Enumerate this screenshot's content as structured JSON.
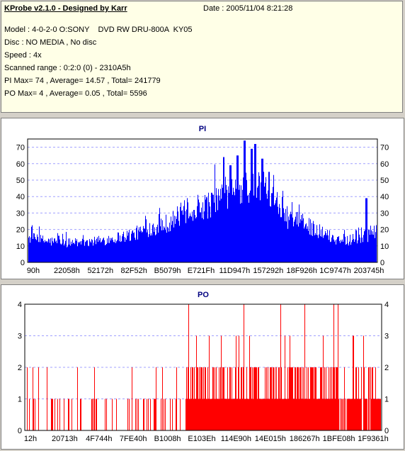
{
  "header": {
    "app_title": "KProbe v2.1.0 - Designed by Karr",
    "date": "Date : 2005/11/04 8:21:28",
    "lines": [
      "Model : 4-0-2-0 O:SONY    DVD RW DRU-800A  KY05",
      "Disc : NO MEDIA , No disc",
      "Speed : 4x",
      "Scanned range : 0:2:0 (0) - 2310A5h",
      "PI Max= 74 , Average= 14.57 , Total= 241779",
      "PO Max= 4 , Average= 0.05 , Total= 5596"
    ]
  },
  "colors": {
    "pi": "#0000ff",
    "po": "#ff0000",
    "title": "#000080",
    "grid": "#a0a0ff"
  },
  "chart_data": [
    {
      "type": "bar",
      "title": "PI",
      "ylim": [
        0,
        75
      ],
      "yticks": [
        0,
        10,
        20,
        30,
        40,
        50,
        60,
        70
      ],
      "grid": true,
      "x_tick_labels": [
        "90h",
        "22058h",
        "52172h",
        "82F52h",
        "B5079h",
        "E721Fh",
        "11D947h",
        "157292h",
        "18F926h",
        "1C9747h",
        "203745h"
      ],
      "x_range": [
        "90h",
        "2310A5h"
      ],
      "envelope": [
        {
          "x": 0.0,
          "y": 15
        },
        {
          "x": 0.05,
          "y": 13
        },
        {
          "x": 0.1,
          "y": 12
        },
        {
          "x": 0.15,
          "y": 12
        },
        {
          "x": 0.2,
          "y": 13
        },
        {
          "x": 0.25,
          "y": 15
        },
        {
          "x": 0.3,
          "y": 17
        },
        {
          "x": 0.35,
          "y": 21
        },
        {
          "x": 0.4,
          "y": 24
        },
        {
          "x": 0.45,
          "y": 31
        },
        {
          "x": 0.5,
          "y": 34
        },
        {
          "x": 0.55,
          "y": 38
        },
        {
          "x": 0.6,
          "y": 43
        },
        {
          "x": 0.65,
          "y": 47
        },
        {
          "x": 0.7,
          "y": 45
        },
        {
          "x": 0.72,
          "y": 31
        },
        {
          "x": 0.75,
          "y": 26
        },
        {
          "x": 0.8,
          "y": 23
        },
        {
          "x": 0.85,
          "y": 17
        },
        {
          "x": 0.9,
          "y": 13
        },
        {
          "x": 0.95,
          "y": 15
        },
        {
          "x": 1.0,
          "y": 18
        }
      ],
      "peaks": [
        {
          "x": 0.56,
          "y": 64
        },
        {
          "x": 0.58,
          "y": 59
        },
        {
          "x": 0.6,
          "y": 65
        },
        {
          "x": 0.62,
          "y": 74
        },
        {
          "x": 0.64,
          "y": 69
        },
        {
          "x": 0.65,
          "y": 72
        },
        {
          "x": 0.67,
          "y": 63
        },
        {
          "x": 0.69,
          "y": 55
        },
        {
          "x": 0.97,
          "y": 39
        }
      ]
    },
    {
      "type": "bar",
      "title": "PO",
      "ylim": [
        0,
        4
      ],
      "yticks": [
        0,
        1,
        2,
        3,
        4
      ],
      "grid": true,
      "x_tick_labels": [
        "12h",
        "20713h",
        "4F744h",
        "7FE40h",
        "B1008h",
        "E103Eh",
        "114E90h",
        "14E015h",
        "186267h",
        "1BFE08h",
        "1F9361h"
      ],
      "x_range": [
        "12h",
        "2310A5h"
      ],
      "density_by_region": [
        {
          "from": 0.0,
          "to": 0.45,
          "level1": 0.35,
          "level2": 0.06,
          "level3": 0.0,
          "level4": 0.005
        },
        {
          "from": 0.45,
          "to": 0.88,
          "level1": 0.95,
          "level2": 0.45,
          "level3": 0.05,
          "level4": 0.025
        },
        {
          "from": 0.88,
          "to": 1.0,
          "level1": 0.8,
          "level2": 0.3,
          "level3": 0.03,
          "level4": 0.0
        }
      ]
    }
  ]
}
